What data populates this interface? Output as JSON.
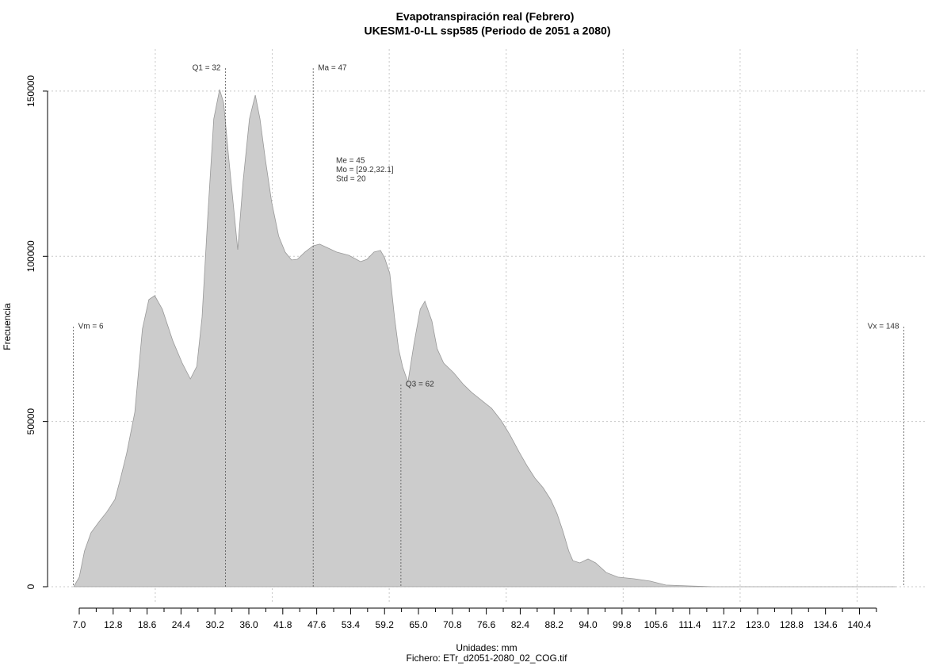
{
  "chart_data": {
    "type": "area",
    "title": "Evapotranspiración real (Febrero)",
    "subtitle": "UKESM1-0-LL ssp585 (Periodo de 2051 a 2080)",
    "xlabel": "Unidades: mm",
    "caption": "Fichero: ETr_d2051-2080_02_COG.tif",
    "ylabel": "Frecuencia",
    "color": "#cccccc",
    "grid": true,
    "xlim": [
      1.58,
      151.99
    ],
    "ylim": [
      -4800,
      162700
    ],
    "yticks": [
      0,
      50000,
      100000,
      150000
    ],
    "xgrid": [
      20,
      40,
      60,
      80,
      100,
      120,
      140
    ],
    "xticks": [
      {
        "value": 7,
        "label": "7.0"
      },
      12.8,
      18.6,
      24.4,
      30.2,
      {
        "value": 36,
        "label": "36.0"
      },
      41.8,
      47.6,
      53.4,
      59.2,
      {
        "value": 65,
        "label": "65.0"
      },
      70.8,
      76.6,
      82.4,
      88.2,
      {
        "value": 94,
        "label": "94.0"
      },
      99.8,
      105.6,
      111.4,
      117.2,
      {
        "value": 123,
        "label": "123.0"
      },
      128.8,
      134.6,
      140.4
    ],
    "xticks_minor": [
      9.9,
      15.7,
      21.5,
      27.3,
      33.1,
      38.9,
      44.7,
      50.5,
      56.3,
      62.1,
      67.9,
      73.7,
      79.5,
      85.3,
      91.1,
      96.9,
      102.7,
      108.5,
      114.3,
      120.1,
      125.9,
      131.7,
      137.5,
      143.3
    ],
    "x": [
      6.05,
      7.0,
      7.9,
      9.0,
      10.4,
      11.7,
      13.1,
      14.0,
      15.1,
      16.5,
      17.8,
      18.9,
      19.9,
      21.2,
      23.0,
      24.6,
      26.0,
      27.1,
      28.0,
      29.0,
      30.0,
      31.0,
      31.7,
      32.5,
      33.3,
      34.1,
      35.0,
      36.1,
      37.1,
      37.9,
      38.8,
      39.9,
      41.1,
      42.2,
      43.3,
      44.3,
      45.6,
      47.0,
      48.1,
      49.3,
      51.0,
      53.1,
      55.1,
      56.2,
      57.4,
      58.5,
      59.2,
      60.1,
      60.9,
      61.6,
      62.3,
      63.2,
      64.2,
      65.3,
      66.1,
      67.3,
      68.2,
      69.3,
      71.0,
      72.7,
      74.1,
      75.8,
      77.5,
      79.1,
      80.6,
      82.2,
      83.6,
      84.9,
      86.3,
      87.6,
      88.7,
      89.7,
      90.7,
      91.4,
      92.6,
      94.0,
      95.3,
      97.1,
      99.1,
      101.9,
      104.6,
      107.3,
      111.3,
      115.4,
      146.6
    ],
    "values": [
      0,
      2900,
      10800,
      16300,
      19700,
      22600,
      26400,
      32400,
      40300,
      52800,
      78000,
      86900,
      88100,
      84000,
      74400,
      67700,
      62900,
      66700,
      81600,
      112800,
      141600,
      150500,
      146400,
      130800,
      116400,
      102000,
      122400,
      141600,
      148800,
      141600,
      129600,
      116400,
      106100,
      101300,
      98900,
      99100,
      101300,
      103200,
      103700,
      102700,
      101300,
      100300,
      98400,
      99100,
      101300,
      101800,
      99600,
      94800,
      81600,
      72000,
      66500,
      61900,
      73200,
      84000,
      86400,
      80400,
      72000,
      67700,
      64800,
      61200,
      58800,
      56400,
      54000,
      50400,
      46100,
      40800,
      36500,
      32900,
      30000,
      26400,
      22100,
      16800,
      10800,
      7900,
      7200,
      8400,
      7200,
      4300,
      2900,
      2400,
      1700,
      500,
      240,
      0,
      0
    ],
    "annotations": [
      {
        "text": "Vm = 6",
        "x": 6
      },
      {
        "text": "Q1 = 32",
        "x": 32
      },
      {
        "text": "Ma = 47",
        "x": 47
      },
      {
        "text": "Q3 = 62",
        "x": 62
      },
      {
        "text": "Vx = 148",
        "x": 148
      }
    ],
    "stats": [
      "Me = 45",
      "Mo = [29.2,32.1]",
      "Std = 20"
    ]
  }
}
